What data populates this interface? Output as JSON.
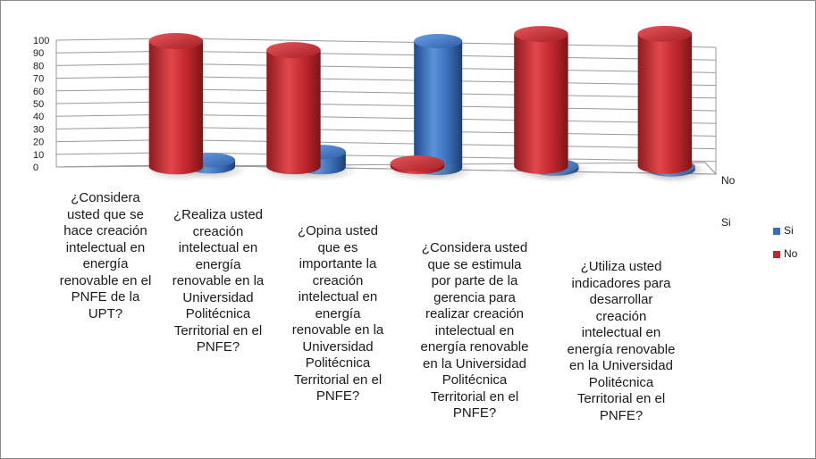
{
  "chart_data": {
    "type": "bar",
    "style": "3d-cylinder",
    "categories": [
      "¿Considera usted que se hace creación intelectual en energía renovable en el PNFE de la UPT?",
      "¿Realiza usted creación intelectual en energía renovable en la Universidad Politécnica Territorial  en el PNFE?",
      "¿Opina usted que es importante la creación intelectual en energía renovable en la Universidad Politécnica Territorial  en el PNFE?",
      "¿Considera usted que se estimula por parte de la gerencia para realizar creación intelectual en energía renovable en la Universidad Politécnica Territorial  en el PNFE?",
      "¿Utiliza usted indicadores para desarrollar creación intelectual en energía renovable en la Universidad Politécnica Territorial  en el PNFE?"
    ],
    "series": [
      {
        "name": "Si",
        "color": "#3a6fb8",
        "values": [
          5,
          12,
          100,
          0,
          0
        ]
      },
      {
        "name": "No",
        "color": "#c0272d",
        "values": [
          95,
          88,
          0,
          100,
          100
        ]
      }
    ],
    "depth_labels": [
      "No",
      "Si"
    ],
    "ylim": [
      0,
      100
    ],
    "yticks": [
      0,
      10,
      20,
      30,
      40,
      50,
      60,
      70,
      80,
      90,
      100
    ],
    "grid": true,
    "legend_position": "right",
    "title": "",
    "xlabel": "",
    "ylabel": ""
  }
}
